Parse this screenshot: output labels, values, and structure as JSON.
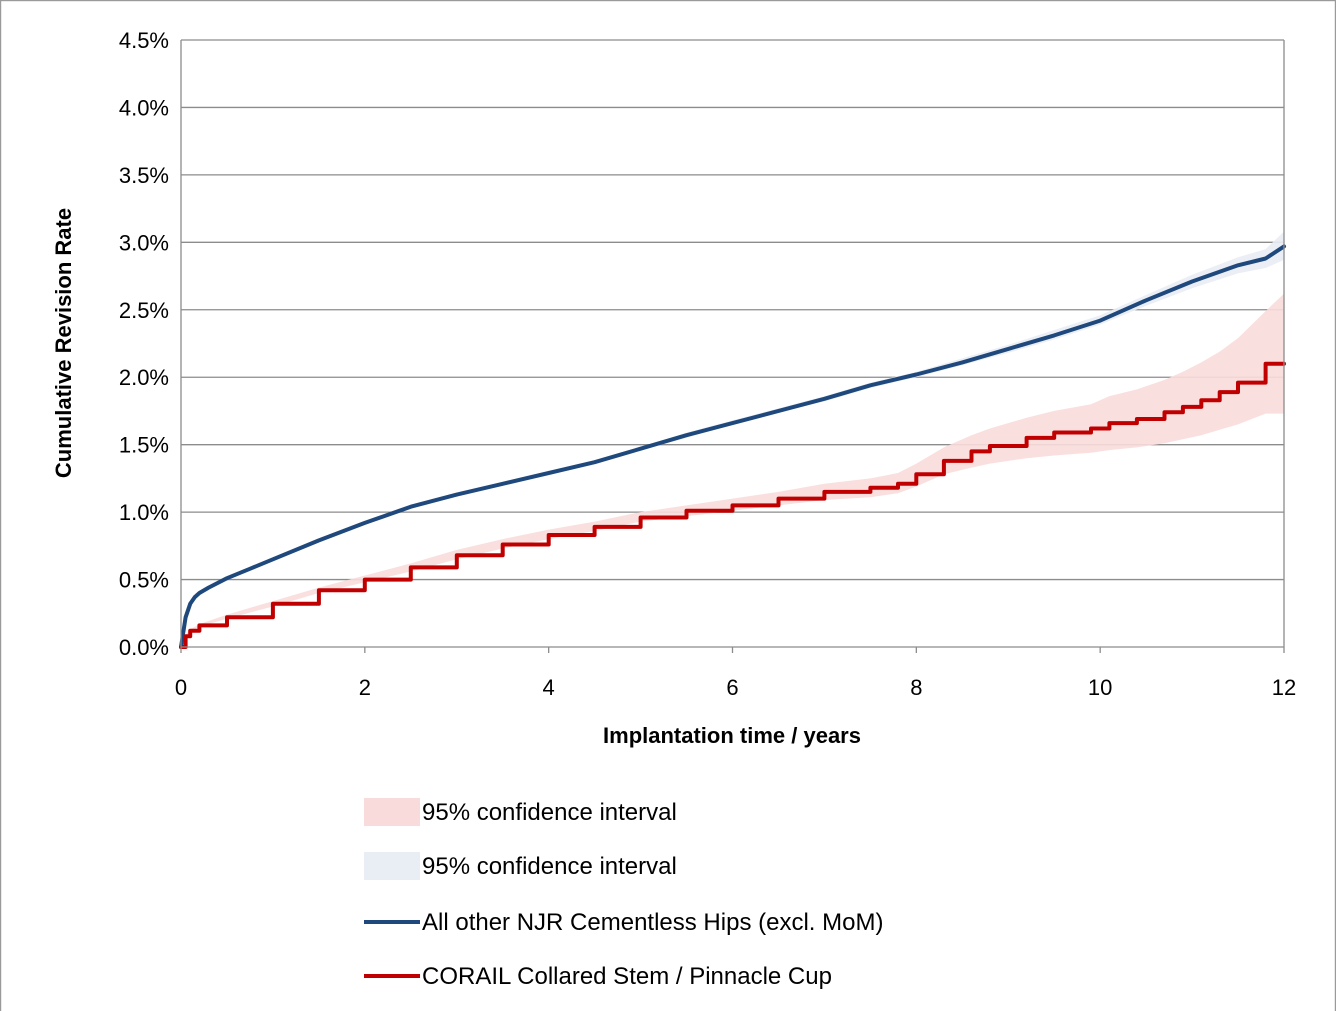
{
  "chart_data": {
    "type": "line",
    "xlabel": "Implantation time  / years",
    "ylabel": "Cumulative Revision Rate",
    "xlim": [
      0,
      12
    ],
    "ylim": [
      0,
      4.5
    ],
    "x_ticks": [
      "0",
      "2",
      "4",
      "6",
      "8",
      "10",
      "12"
    ],
    "y_ticks": [
      "0.0%",
      "0.5%",
      "1.0%",
      "1.5%",
      "2.0%",
      "2.5%",
      "3.0%",
      "3.5%",
      "4.0%",
      "4.5%"
    ],
    "grid": true,
    "legend_position": "bottom",
    "series": [
      {
        "name": "All  other NJR Cementless Hips (excl. MoM)",
        "color": "#1F497D",
        "x": [
          0,
          0.05,
          0.1,
          0.15,
          0.2,
          0.3,
          0.5,
          0.75,
          1.0,
          1.5,
          2.0,
          2.5,
          3.0,
          3.5,
          4.0,
          4.5,
          5.0,
          5.5,
          6.0,
          6.5,
          7.0,
          7.5,
          8.0,
          8.5,
          9.0,
          9.5,
          10.0,
          10.5,
          11.0,
          11.5,
          11.8,
          12.0
        ],
        "values": [
          0.0,
          0.22,
          0.32,
          0.37,
          0.4,
          0.44,
          0.51,
          0.58,
          0.65,
          0.79,
          0.92,
          1.04,
          1.13,
          1.21,
          1.29,
          1.37,
          1.47,
          1.57,
          1.66,
          1.75,
          1.84,
          1.94,
          2.02,
          2.11,
          2.21,
          2.31,
          2.42,
          2.57,
          2.71,
          2.83,
          2.88,
          2.97
        ],
        "ci_lower": [
          0.0,
          0.21,
          0.31,
          0.36,
          0.39,
          0.43,
          0.5,
          0.57,
          0.64,
          0.78,
          0.91,
          1.03,
          1.12,
          1.2,
          1.28,
          1.36,
          1.46,
          1.55,
          1.65,
          1.74,
          1.82,
          1.92,
          2.0,
          2.09,
          2.18,
          2.28,
          2.39,
          2.53,
          2.66,
          2.77,
          2.81,
          2.87
        ],
        "ci_upper": [
          0.0,
          0.23,
          0.33,
          0.38,
          0.41,
          0.45,
          0.52,
          0.59,
          0.66,
          0.8,
          0.93,
          1.05,
          1.14,
          1.22,
          1.3,
          1.38,
          1.48,
          1.59,
          1.68,
          1.77,
          1.86,
          1.96,
          2.04,
          2.14,
          2.24,
          2.35,
          2.46,
          2.61,
          2.76,
          2.89,
          2.95,
          3.08
        ]
      },
      {
        "name": "CORAIL Collared Stem / Pinnacle Cup",
        "color": "#C00000",
        "x": [
          0,
          0.05,
          0.1,
          0.2,
          0.5,
          1.0,
          1.5,
          2.0,
          2.5,
          3.0,
          3.5,
          4.0,
          4.5,
          5.0,
          5.5,
          6.0,
          6.5,
          7.0,
          7.5,
          7.8,
          8.0,
          8.3,
          8.6,
          8.8,
          9.2,
          9.5,
          9.9,
          10.1,
          10.4,
          10.7,
          10.9,
          11.1,
          11.3,
          11.5,
          11.8,
          12.0
        ],
        "values": [
          0.0,
          0.08,
          0.12,
          0.16,
          0.22,
          0.32,
          0.42,
          0.5,
          0.59,
          0.68,
          0.76,
          0.83,
          0.89,
          0.96,
          1.01,
          1.05,
          1.1,
          1.15,
          1.18,
          1.21,
          1.28,
          1.38,
          1.45,
          1.49,
          1.55,
          1.59,
          1.62,
          1.66,
          1.69,
          1.74,
          1.78,
          1.83,
          1.89,
          1.96,
          2.1,
          2.1
        ],
        "ci_lower": [
          0.0,
          0.07,
          0.11,
          0.15,
          0.21,
          0.3,
          0.4,
          0.48,
          0.56,
          0.65,
          0.73,
          0.8,
          0.86,
          0.93,
          0.97,
          1.01,
          1.05,
          1.09,
          1.11,
          1.14,
          1.19,
          1.28,
          1.33,
          1.36,
          1.4,
          1.42,
          1.44,
          1.46,
          1.48,
          1.51,
          1.54,
          1.57,
          1.61,
          1.65,
          1.73,
          1.73
        ],
        "ci_upper": [
          0.0,
          0.09,
          0.13,
          0.17,
          0.24,
          0.34,
          0.44,
          0.53,
          0.62,
          0.72,
          0.8,
          0.87,
          0.93,
          1.0,
          1.05,
          1.1,
          1.15,
          1.21,
          1.25,
          1.29,
          1.36,
          1.48,
          1.57,
          1.62,
          1.7,
          1.75,
          1.8,
          1.86,
          1.91,
          1.98,
          2.04,
          2.11,
          2.19,
          2.29,
          2.49,
          2.62
        ]
      }
    ],
    "legend": [
      {
        "label": "95% confidence interval",
        "kind": "band",
        "color": "#FADBDB"
      },
      {
        "label": "95% confidence interval",
        "kind": "band",
        "color": "#E9EDF4"
      },
      {
        "label": "All  other NJR Cementless Hips (excl. MoM)",
        "kind": "line",
        "color": "#1F497D"
      },
      {
        "label": "CORAIL Collared Stem / Pinnacle Cup",
        "kind": "line",
        "color": "#C00000"
      }
    ]
  }
}
